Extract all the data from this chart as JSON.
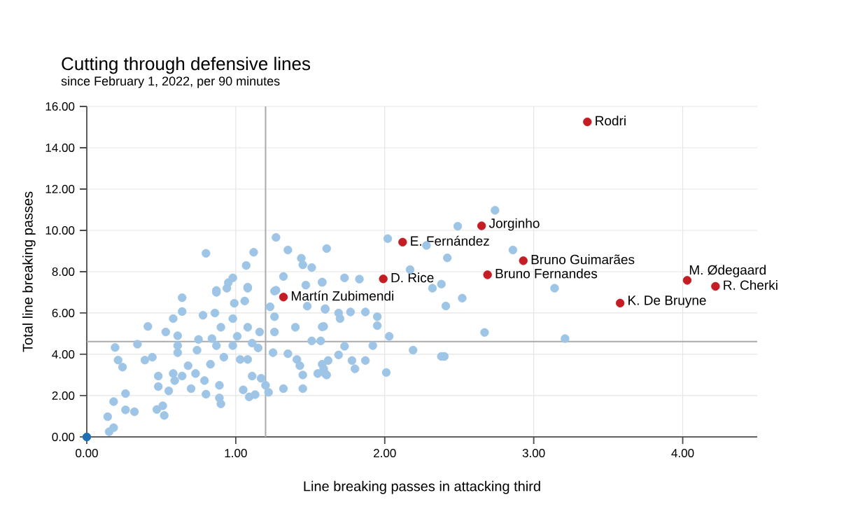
{
  "chart_data": {
    "type": "scatter",
    "title": "Cutting through defensive lines",
    "subtitle": "since February 1, 2022, per 90 minutes",
    "xlabel": "Line breaking passes in attacking third",
    "ylabel": "Total line breaking passes",
    "xlim": [
      0,
      4.5
    ],
    "ylim": [
      0,
      16
    ],
    "xticks": [
      {
        "value": 0,
        "label": "0.00"
      },
      {
        "value": 1,
        "label": "1.00"
      },
      {
        "value": 2,
        "label": "2.00"
      },
      {
        "value": 3,
        "label": "3.00"
      },
      {
        "value": 4,
        "label": "4.00"
      }
    ],
    "yticks": [
      {
        "value": 0,
        "label": "0.00"
      },
      {
        "value": 2,
        "label": "2.00"
      },
      {
        "value": 4,
        "label": "4.00"
      },
      {
        "value": 6,
        "label": "6.00"
      },
      {
        "value": 8,
        "label": "8.00"
      },
      {
        "value": 10,
        "label": "10.00"
      },
      {
        "value": 12,
        "label": "12.00"
      },
      {
        "value": 14,
        "label": "14.00"
      },
      {
        "value": 16,
        "label": "16.00"
      }
    ],
    "grid": true,
    "ref_lines": [
      {
        "axis": "x",
        "value": 1.2,
        "color": "#aaaaaa"
      },
      {
        "axis": "y",
        "value": 4.62,
        "color": "#aaaaaa"
      }
    ],
    "series": [
      {
        "color": "#9ec5e6",
        "x": [
          0.15,
          0.18,
          0.14,
          0.18,
          0.26,
          0.26,
          0.32,
          0.24,
          0.21,
          0.19,
          0.34,
          0.39,
          0.44,
          0.41,
          0.53,
          0.58,
          0.64,
          0.64,
          0.61,
          0.61,
          0.61,
          0.48,
          0.48,
          0.55,
          0.47,
          0.51,
          0.52,
          0.58,
          0.59,
          0.64,
          0.68,
          0.7,
          0.73,
          0.75,
          0.74,
          0.78,
          0.79,
          0.8,
          0.83,
          0.86,
          0.87,
          0.84,
          0.87,
          0.89,
          0.9,
          0.89,
          0.9,
          0.92,
          0.95,
          0.98,
          0.98,
          0.99,
          1.01,
          1.03,
          1.05,
          1.06,
          1.08,
          1.08,
          1.08,
          1.09,
          1.11,
          1.11,
          1.13,
          1.15,
          1.16,
          1.17,
          1.2,
          1.22,
          1.23,
          1.25,
          1.26,
          1.26,
          1.26,
          1.32,
          1.35,
          1.4,
          1.41,
          1.43,
          1.45,
          1.45,
          1.48,
          1.51,
          1.55,
          1.58,
          1.59,
          1.6,
          1.6,
          1.57,
          0.8,
          1.12,
          1.07,
          0.98,
          0.94,
          0.87,
          1.08,
          1.27,
          1.35,
          1.44,
          1.45,
          1.51,
          1.32,
          1.47,
          1.58,
          1.61,
          1.27,
          2.74,
          2.49,
          2.02,
          2.28,
          2.42,
          2.86,
          2.17,
          1.73,
          1.83,
          1.58,
          2.38,
          2.32,
          3.14,
          1.6,
          1.69,
          1.77,
          1.87,
          1.95,
          1.7,
          1.58,
          1.95,
          2.03,
          2.52,
          2.41,
          2.67,
          3.21,
          1.73,
          1.92,
          2.19,
          1.69,
          1.78,
          1.87,
          1.62,
          1.59,
          1.61,
          1.8,
          2.01,
          2.38,
          2.4
        ],
        "values": [
          0.25,
          0.45,
          0.98,
          1.71,
          2.1,
          1.31,
          1.22,
          3.38,
          3.72,
          4.33,
          4.49,
          3.72,
          3.86,
          5.35,
          5.08,
          5.73,
          6.07,
          6.74,
          4.9,
          4.42,
          4.08,
          2.95,
          2.44,
          2.23,
          1.33,
          1.51,
          1.04,
          3.07,
          2.73,
          2.95,
          3.45,
          2.34,
          3.07,
          4.72,
          4.2,
          5.89,
          2.73,
          2.07,
          3.52,
          6.0,
          7.09,
          4.76,
          4.42,
          2.5,
          5.31,
          1.89,
          1.6,
          3.86,
          7.47,
          5.73,
          4.42,
          6.47,
          4.87,
          3.75,
          2.28,
          6.58,
          7.25,
          5.31,
          3.75,
          1.94,
          4.54,
          2.95,
          2.05,
          4.31,
          5.08,
          2.84,
          2.5,
          2.16,
          6.3,
          4.08,
          5.82,
          7.06,
          5.08,
          2.34,
          4.03,
          5.31,
          3.75,
          3.45,
          3.0,
          2.34,
          6.33,
          4.65,
          3.07,
          3.52,
          5.35,
          6.21,
          3.07,
          4.65,
          8.89,
          8.94,
          8.3,
          7.7,
          7.2,
          7.0,
          7.2,
          9.66,
          9.05,
          8.65,
          8.33,
          8.2,
          7.77,
          7.35,
          7.5,
          9.12,
          7.1,
          10.97,
          10.2,
          9.6,
          9.27,
          8.67,
          9.05,
          8.1,
          7.7,
          7.64,
          7.48,
          7.4,
          7.2,
          7.2,
          6.18,
          6.0,
          6.05,
          6.05,
          5.82,
          5.73,
          5.33,
          5.39,
          4.87,
          6.72,
          6.34,
          5.06,
          4.76,
          4.39,
          4.42,
          4.2,
          3.97,
          3.7,
          3.7,
          3.7,
          3.3,
          3.0,
          3.3,
          3.12,
          3.9,
          3.9
        ]
      },
      {
        "color": "#1f6fb2",
        "x": [
          0
        ],
        "values": [
          0
        ]
      },
      {
        "color": "#c41e24",
        "x": [
          3.36,
          2.65,
          2.12,
          2.93,
          2.69,
          1.99,
          1.32,
          4.03,
          4.22,
          3.58
        ],
        "values": [
          15.25,
          10.22,
          9.43,
          8.53,
          7.85,
          7.65,
          6.77,
          7.58,
          7.29,
          6.48
        ]
      }
    ],
    "annotations": [
      {
        "text": "Rodri",
        "x": 3.36,
        "y": 15.25
      },
      {
        "text": "Jorginho",
        "x": 2.65,
        "y": 10.22
      },
      {
        "text": "E. Fernández",
        "x": 2.12,
        "y": 9.43
      },
      {
        "text": "Bruno Guimarães",
        "x": 2.93,
        "y": 8.53
      },
      {
        "text": "Bruno Fernandes",
        "x": 2.69,
        "y": 7.85
      },
      {
        "text": "D. Rice",
        "x": 1.99,
        "y": 7.65
      },
      {
        "text": "Martín Zubimendi",
        "x": 1.32,
        "y": 6.77
      },
      {
        "text": "M. Ødegaard",
        "x": 4.03,
        "y": 7.58
      },
      {
        "text": "R. Cherki",
        "x": 4.22,
        "y": 7.29
      },
      {
        "text": "K. De Bruyne",
        "x": 3.58,
        "y": 6.48
      }
    ]
  }
}
